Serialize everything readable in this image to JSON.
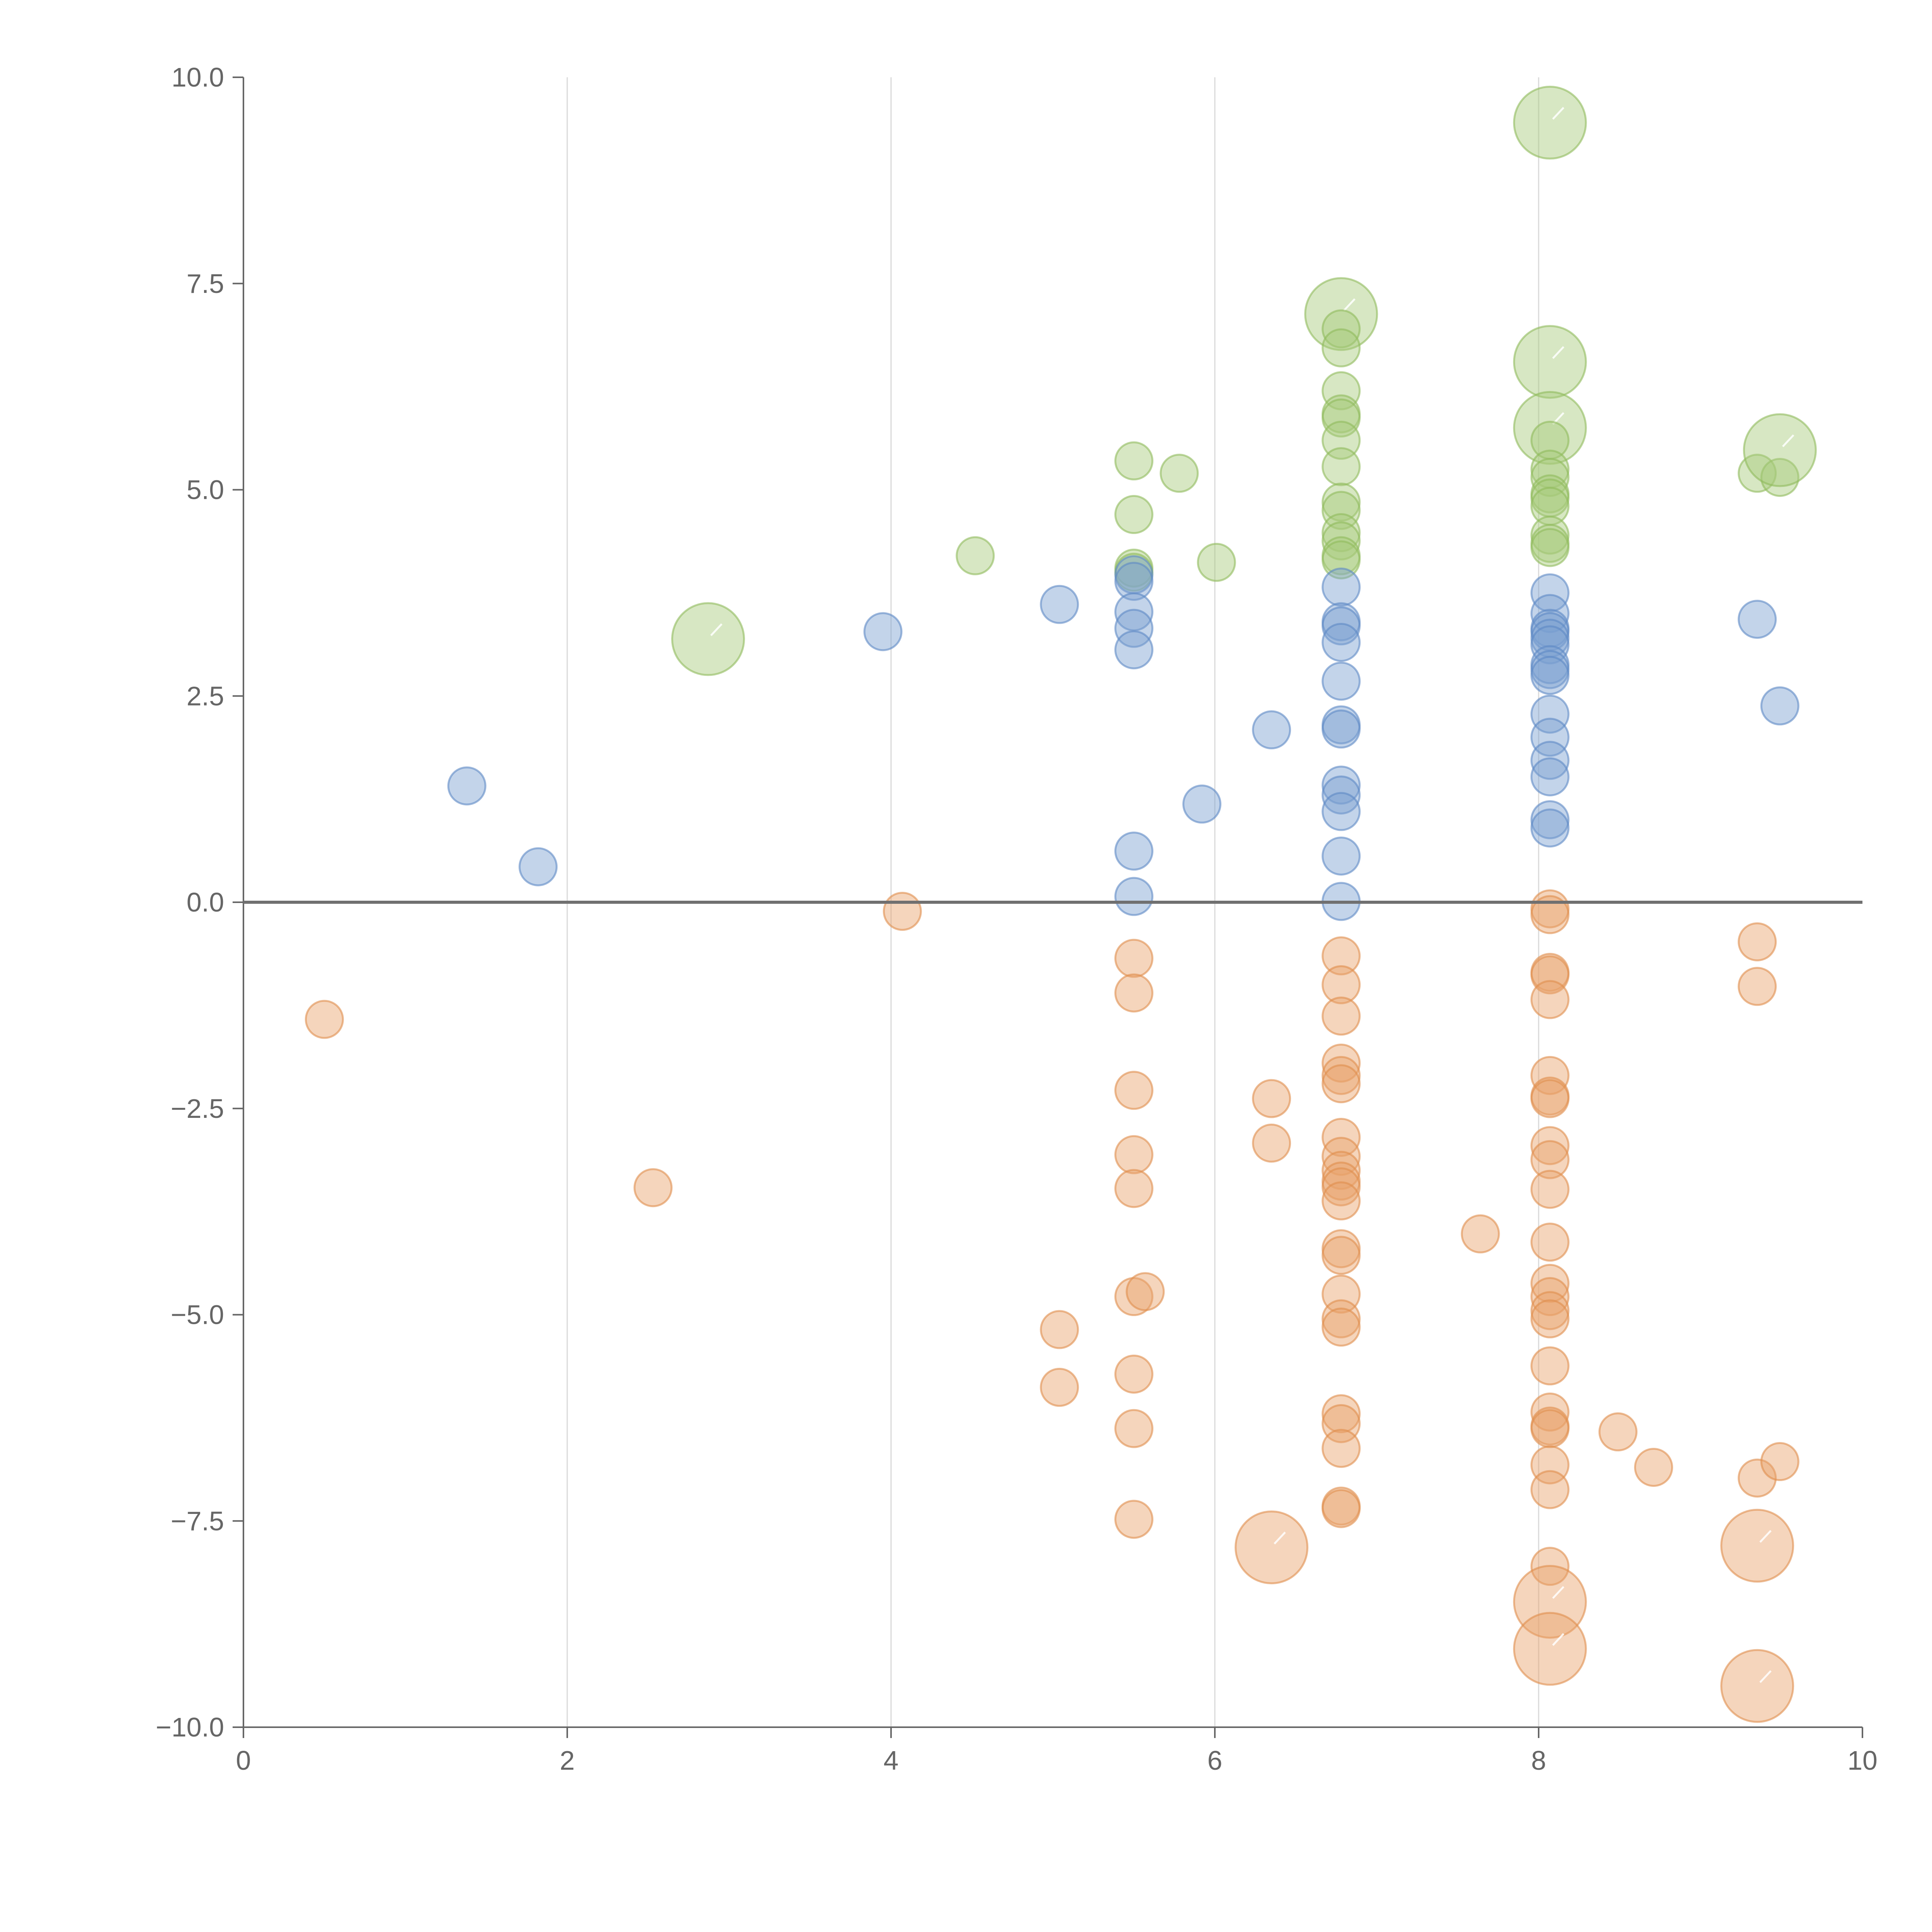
{
  "chart_data": {
    "type": "scatter",
    "title": "",
    "xlabel": "",
    "ylabel": "",
    "xlim": [
      0,
      10
    ],
    "ylim": [
      -10,
      10
    ],
    "x_ticks": [
      0,
      2,
      4,
      6,
      8,
      10
    ],
    "x_tick_labels": [
      "0",
      "2",
      "4",
      "6",
      "8",
      "10"
    ],
    "y_ticks": [
      10,
      7.5,
      5,
      2.5,
      0,
      -2.5,
      -5,
      -7.5,
      -10
    ],
    "y_tick_labels": [
      "10.0",
      "7.5",
      "5.0",
      "2.5",
      "0.0",
      "−2.5",
      "−5.0",
      "−7.5",
      "−10.0"
    ],
    "grid": {
      "x": true,
      "y": false
    },
    "zero_line": 0,
    "fill_opacity": 0.45,
    "series": [
      {
        "name": "green",
        "color": "#a6c97a",
        "stroke": "#8fba5c",
        "points": [
          {
            "x": 2.87,
            "y": 3.19,
            "size": 3
          },
          {
            "x": 4.52,
            "y": 4.2,
            "size": 1
          },
          {
            "x": 5.5,
            "y": 5.35,
            "size": 1
          },
          {
            "x": 5.5,
            "y": 4.7,
            "size": 1
          },
          {
            "x": 5.5,
            "y": 4.05,
            "size": 1
          },
          {
            "x": 5.5,
            "y": 4.0,
            "size": 1
          },
          {
            "x": 5.78,
            "y": 5.2,
            "size": 1
          },
          {
            "x": 6.01,
            "y": 4.12,
            "size": 1
          },
          {
            "x": 6.78,
            "y": 7.13,
            "size": 3
          },
          {
            "x": 6.78,
            "y": 6.95,
            "size": 1
          },
          {
            "x": 6.78,
            "y": 6.72,
            "size": 1
          },
          {
            "x": 6.78,
            "y": 6.2,
            "size": 1
          },
          {
            "x": 6.78,
            "y": 5.92,
            "size": 1
          },
          {
            "x": 6.78,
            "y": 5.87,
            "size": 1
          },
          {
            "x": 6.78,
            "y": 5.6,
            "size": 1
          },
          {
            "x": 6.78,
            "y": 5.28,
            "size": 1
          },
          {
            "x": 6.78,
            "y": 4.85,
            "size": 1
          },
          {
            "x": 6.78,
            "y": 4.75,
            "size": 1
          },
          {
            "x": 6.78,
            "y": 4.48,
            "size": 1
          },
          {
            "x": 6.78,
            "y": 4.38,
            "size": 1
          },
          {
            "x": 6.78,
            "y": 4.2,
            "size": 1
          },
          {
            "x": 6.78,
            "y": 4.15,
            "size": 1
          },
          {
            "x": 8.07,
            "y": 9.45,
            "size": 3
          },
          {
            "x": 8.07,
            "y": 6.55,
            "size": 3
          },
          {
            "x": 8.07,
            "y": 5.75,
            "size": 3
          },
          {
            "x": 8.07,
            "y": 5.6,
            "size": 1
          },
          {
            "x": 8.07,
            "y": 5.25,
            "size": 1
          },
          {
            "x": 8.07,
            "y": 5.15,
            "size": 1
          },
          {
            "x": 8.07,
            "y": 4.95,
            "size": 1
          },
          {
            "x": 8.07,
            "y": 4.9,
            "size": 1
          },
          {
            "x": 8.07,
            "y": 4.8,
            "size": 1
          },
          {
            "x": 8.07,
            "y": 4.45,
            "size": 1
          },
          {
            "x": 8.07,
            "y": 4.35,
            "size": 1
          },
          {
            "x": 8.07,
            "y": 4.3,
            "size": 1
          },
          {
            "x": 9.35,
            "y": 5.2,
            "size": 1
          },
          {
            "x": 9.49,
            "y": 5.15,
            "size": 1
          },
          {
            "x": 9.49,
            "y": 5.48,
            "size": 3
          }
        ]
      },
      {
        "name": "blue",
        "color": "#7b9fd0",
        "stroke": "#5e88c4",
        "points": [
          {
            "x": 1.38,
            "y": 1.41,
            "size": 1
          },
          {
            "x": 1.82,
            "y": 0.43,
            "size": 1
          },
          {
            "x": 3.95,
            "y": 3.28,
            "size": 1
          },
          {
            "x": 5.04,
            "y": 3.61,
            "size": 1
          },
          {
            "x": 5.5,
            "y": 3.97,
            "size": 1
          },
          {
            "x": 5.5,
            "y": 3.89,
            "size": 1
          },
          {
            "x": 5.5,
            "y": 3.52,
            "size": 1
          },
          {
            "x": 5.5,
            "y": 3.32,
            "size": 1
          },
          {
            "x": 5.5,
            "y": 3.06,
            "size": 1
          },
          {
            "x": 5.5,
            "y": 0.62,
            "size": 1
          },
          {
            "x": 5.5,
            "y": 0.07,
            "size": 1
          },
          {
            "x": 5.92,
            "y": 1.19,
            "size": 1
          },
          {
            "x": 6.35,
            "y": 2.09,
            "size": 1
          },
          {
            "x": 6.78,
            "y": 3.82,
            "size": 1
          },
          {
            "x": 6.78,
            "y": 3.4,
            "size": 1
          },
          {
            "x": 6.78,
            "y": 3.35,
            "size": 1
          },
          {
            "x": 6.78,
            "y": 3.15,
            "size": 1
          },
          {
            "x": 6.78,
            "y": 2.68,
            "size": 1
          },
          {
            "x": 6.78,
            "y": 2.15,
            "size": 1
          },
          {
            "x": 6.78,
            "y": 2.1,
            "size": 1
          },
          {
            "x": 6.78,
            "y": 1.42,
            "size": 1
          },
          {
            "x": 6.78,
            "y": 1.3,
            "size": 1
          },
          {
            "x": 6.78,
            "y": 1.1,
            "size": 1
          },
          {
            "x": 6.78,
            "y": 0.56,
            "size": 1
          },
          {
            "x": 6.78,
            "y": 0.01,
            "size": 1
          },
          {
            "x": 8.07,
            "y": 3.75,
            "size": 1
          },
          {
            "x": 8.07,
            "y": 3.5,
            "size": 1
          },
          {
            "x": 8.07,
            "y": 3.32,
            "size": 1
          },
          {
            "x": 8.07,
            "y": 3.28,
            "size": 1
          },
          {
            "x": 8.07,
            "y": 3.2,
            "size": 1
          },
          {
            "x": 8.07,
            "y": 3.12,
            "size": 1
          },
          {
            "x": 8.07,
            "y": 2.88,
            "size": 1
          },
          {
            "x": 8.07,
            "y": 2.82,
            "size": 1
          },
          {
            "x": 8.07,
            "y": 2.75,
            "size": 1
          },
          {
            "x": 8.07,
            "y": 2.28,
            "size": 1
          },
          {
            "x": 8.07,
            "y": 2.0,
            "size": 1
          },
          {
            "x": 8.07,
            "y": 1.72,
            "size": 1
          },
          {
            "x": 8.07,
            "y": 1.52,
            "size": 1
          },
          {
            "x": 8.07,
            "y": 1.0,
            "size": 1
          },
          {
            "x": 8.07,
            "y": 0.9,
            "size": 1
          },
          {
            "x": 9.35,
            "y": 3.43,
            "size": 1
          },
          {
            "x": 9.49,
            "y": 2.38,
            "size": 1
          }
        ]
      },
      {
        "name": "orange",
        "color": "#e8a26a",
        "stroke": "#e08d4c",
        "points": [
          {
            "x": 0.5,
            "y": -1.42,
            "size": 1
          },
          {
            "x": 2.53,
            "y": -3.46,
            "size": 1
          },
          {
            "x": 4.07,
            "y": -0.11,
            "size": 1
          },
          {
            "x": 5.04,
            "y": -5.18,
            "size": 1
          },
          {
            "x": 5.04,
            "y": -5.88,
            "size": 1
          },
          {
            "x": 5.5,
            "y": -0.68,
            "size": 1
          },
          {
            "x": 5.5,
            "y": -1.1,
            "size": 1
          },
          {
            "x": 5.5,
            "y": -2.28,
            "size": 1
          },
          {
            "x": 5.5,
            "y": -3.06,
            "size": 1
          },
          {
            "x": 5.5,
            "y": -3.47,
            "size": 1
          },
          {
            "x": 5.5,
            "y": -4.78,
            "size": 1
          },
          {
            "x": 5.57,
            "y": -4.72,
            "size": 1
          },
          {
            "x": 5.5,
            "y": -5.72,
            "size": 1
          },
          {
            "x": 5.5,
            "y": -6.38,
            "size": 1
          },
          {
            "x": 5.5,
            "y": -7.48,
            "size": 1
          },
          {
            "x": 6.35,
            "y": -2.38,
            "size": 1
          },
          {
            "x": 6.35,
            "y": -2.92,
            "size": 1
          },
          {
            "x": 6.35,
            "y": -7.82,
            "size": 3
          },
          {
            "x": 6.78,
            "y": -0.65,
            "size": 1
          },
          {
            "x": 6.78,
            "y": -1.0,
            "size": 1
          },
          {
            "x": 6.78,
            "y": -1.38,
            "size": 1
          },
          {
            "x": 6.78,
            "y": -1.95,
            "size": 1
          },
          {
            "x": 6.78,
            "y": -2.1,
            "size": 1
          },
          {
            "x": 6.78,
            "y": -2.2,
            "size": 1
          },
          {
            "x": 6.78,
            "y": -2.85,
            "size": 1
          },
          {
            "x": 6.78,
            "y": -3.08,
            "size": 1
          },
          {
            "x": 6.78,
            "y": -3.25,
            "size": 1
          },
          {
            "x": 6.78,
            "y": -3.38,
            "size": 1
          },
          {
            "x": 6.78,
            "y": -3.45,
            "size": 1
          },
          {
            "x": 6.78,
            "y": -3.62,
            "size": 1
          },
          {
            "x": 6.78,
            "y": -4.2,
            "size": 1
          },
          {
            "x": 6.78,
            "y": -4.28,
            "size": 1
          },
          {
            "x": 6.78,
            "y": -4.75,
            "size": 1
          },
          {
            "x": 6.78,
            "y": -5.05,
            "size": 1
          },
          {
            "x": 6.78,
            "y": -5.15,
            "size": 1
          },
          {
            "x": 6.78,
            "y": -6.2,
            "size": 1
          },
          {
            "x": 6.78,
            "y": -6.32,
            "size": 1
          },
          {
            "x": 6.78,
            "y": -6.62,
            "size": 1
          },
          {
            "x": 6.78,
            "y": -7.32,
            "size": 1
          },
          {
            "x": 6.78,
            "y": -7.35,
            "size": 1
          },
          {
            "x": 7.64,
            "y": -4.02,
            "size": 1
          },
          {
            "x": 8.07,
            "y": -0.08,
            "size": 1
          },
          {
            "x": 8.07,
            "y": -0.15,
            "size": 1
          },
          {
            "x": 8.07,
            "y": -0.85,
            "size": 1
          },
          {
            "x": 8.07,
            "y": -0.88,
            "size": 1
          },
          {
            "x": 8.07,
            "y": -1.18,
            "size": 1
          },
          {
            "x": 8.07,
            "y": -2.1,
            "size": 1
          },
          {
            "x": 8.07,
            "y": -2.35,
            "size": 1
          },
          {
            "x": 8.07,
            "y": -2.38,
            "size": 1
          },
          {
            "x": 8.07,
            "y": -2.95,
            "size": 1
          },
          {
            "x": 8.07,
            "y": -3.12,
            "size": 1
          },
          {
            "x": 8.07,
            "y": -3.48,
            "size": 1
          },
          {
            "x": 8.07,
            "y": -4.12,
            "size": 1
          },
          {
            "x": 8.07,
            "y": -4.62,
            "size": 1
          },
          {
            "x": 8.07,
            "y": -4.78,
            "size": 1
          },
          {
            "x": 8.07,
            "y": -4.95,
            "size": 1
          },
          {
            "x": 8.07,
            "y": -5.05,
            "size": 1
          },
          {
            "x": 8.07,
            "y": -5.62,
            "size": 1
          },
          {
            "x": 8.07,
            "y": -6.18,
            "size": 1
          },
          {
            "x": 8.07,
            "y": -6.35,
            "size": 1
          },
          {
            "x": 8.07,
            "y": -6.38,
            "size": 1
          },
          {
            "x": 8.07,
            "y": -6.82,
            "size": 1
          },
          {
            "x": 8.07,
            "y": -7.12,
            "size": 1
          },
          {
            "x": 8.07,
            "y": -8.05,
            "size": 1
          },
          {
            "x": 8.07,
            "y": -8.48,
            "size": 3
          },
          {
            "x": 8.07,
            "y": -9.05,
            "size": 3
          },
          {
            "x": 8.49,
            "y": -6.42,
            "size": 1
          },
          {
            "x": 8.71,
            "y": -6.85,
            "size": 1
          },
          {
            "x": 9.35,
            "y": -0.48,
            "size": 1
          },
          {
            "x": 9.35,
            "y": -1.02,
            "size": 1
          },
          {
            "x": 9.35,
            "y": -6.98,
            "size": 1
          },
          {
            "x": 9.49,
            "y": -6.78,
            "size": 1
          },
          {
            "x": 9.35,
            "y": -7.8,
            "size": 3
          },
          {
            "x": 9.35,
            "y": -9.5,
            "size": 3
          }
        ]
      }
    ]
  }
}
